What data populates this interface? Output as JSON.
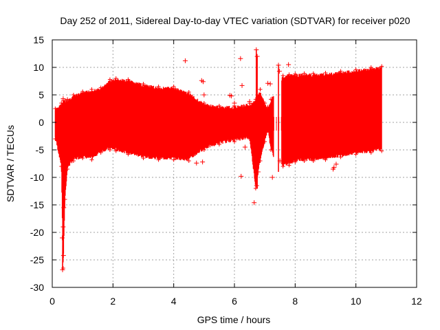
{
  "chart_data": {
    "type": "scatter",
    "title": "Day 252 of 2011, Sidereal Day-to-day VTEC variation (SDTVAR) for receiver p020",
    "xlabel": "GPS time / hours",
    "ylabel": "SDTVAR / TECUs",
    "xlim": [
      0,
      12
    ],
    "ylim": [
      -30,
      15
    ],
    "xticks": [
      0,
      2,
      4,
      6,
      8,
      10,
      12
    ],
    "yticks": [
      -30,
      -25,
      -20,
      -15,
      -10,
      -5,
      0,
      5,
      10,
      15
    ],
    "grid": true,
    "marker": "plus",
    "color": "#ff0000",
    "series": [
      {
        "name": "SDTVAR",
        "envelope": {
          "x": [
            0.1,
            0.3,
            0.36,
            0.42,
            0.5,
            0.7,
            1.0,
            1.3,
            1.6,
            1.9,
            2.1,
            2.5,
            3.0,
            3.5,
            4.0,
            4.5,
            5.0,
            5.5,
            6.0,
            6.5,
            6.7,
            6.85,
            7.0,
            7.1,
            7.2,
            7.4,
            7.6,
            7.8,
            8.0,
            8.3,
            8.6,
            9.0,
            9.5,
            10.0,
            10.5,
            10.85
          ],
          "upper": [
            2.5,
            3.5,
            4.0,
            4.0,
            4.2,
            5.0,
            5.6,
            6.0,
            6.3,
            7.8,
            8.0,
            7.8,
            7.0,
            6.5,
            6.5,
            5.5,
            3.5,
            3.0,
            3.0,
            3.5,
            4.2,
            6.0,
            3.5,
            2.8,
            4.2,
            6.5,
            8.5,
            8.7,
            8.8,
            8.9,
            8.9,
            9.0,
            9.3,
            9.6,
            10.0,
            10.2
          ],
          "lower": [
            -3.0,
            -8.0,
            -26.5,
            -14.0,
            -8.5,
            -7.0,
            -6.5,
            -6.8,
            -5.5,
            -5.0,
            -5.2,
            -5.8,
            -6.5,
            -6.8,
            -6.8,
            -7.0,
            -5.0,
            -4.0,
            -3.5,
            -3.0,
            -12.0,
            -7.0,
            -3.5,
            -1.5,
            -5.0,
            -8.0,
            -8.0,
            -7.8,
            -7.2,
            -7.0,
            -7.0,
            -6.8,
            -6.3,
            -5.8,
            -5.5,
            -5.2
          ]
        },
        "gap_hours": [
          7.3,
          7.55
        ],
        "outliers": [
          {
            "x": 0.34,
            "y": -26.8
          },
          {
            "x": 0.37,
            "y": -24.2
          },
          {
            "x": 0.33,
            "y": -21.0
          },
          {
            "x": 0.36,
            "y": -19.0
          },
          {
            "x": 0.38,
            "y": -15.5
          },
          {
            "x": 0.36,
            "y": 4.3
          },
          {
            "x": 4.38,
            "y": 11.2
          },
          {
            "x": 4.92,
            "y": 7.6
          },
          {
            "x": 4.97,
            "y": 7.4
          },
          {
            "x": 5.0,
            "y": 5.0
          },
          {
            "x": 4.95,
            "y": -7.2
          },
          {
            "x": 4.75,
            "y": -7.4
          },
          {
            "x": 5.85,
            "y": 4.9
          },
          {
            "x": 5.9,
            "y": 4.8
          },
          {
            "x": 6.0,
            "y": 3.5
          },
          {
            "x": 6.2,
            "y": 11.6
          },
          {
            "x": 6.25,
            "y": 6.7
          },
          {
            "x": 6.22,
            "y": -9.8
          },
          {
            "x": 6.35,
            "y": -4.5
          },
          {
            "x": 6.5,
            "y": 3.8
          },
          {
            "x": 6.65,
            "y": -14.6
          },
          {
            "x": 6.72,
            "y": 13.2
          },
          {
            "x": 6.75,
            "y": 12.0
          },
          {
            "x": 6.73,
            "y": -11.5
          },
          {
            "x": 6.78,
            "y": -9.0
          },
          {
            "x": 7.1,
            "y": 7.1
          },
          {
            "x": 7.18,
            "y": 7.0
          },
          {
            "x": 7.25,
            "y": -10.0
          },
          {
            "x": 7.45,
            "y": 10.4
          },
          {
            "x": 7.48,
            "y": 9.3
          },
          {
            "x": 7.5,
            "y": -7.0
          },
          {
            "x": 7.62,
            "y": -7.5
          },
          {
            "x": 7.78,
            "y": 10.5
          },
          {
            "x": 9.25,
            "y": -8.5
          },
          {
            "x": 9.35,
            "y": -7.6
          },
          {
            "x": 9.28,
            "y": -8.2
          }
        ]
      }
    ]
  }
}
